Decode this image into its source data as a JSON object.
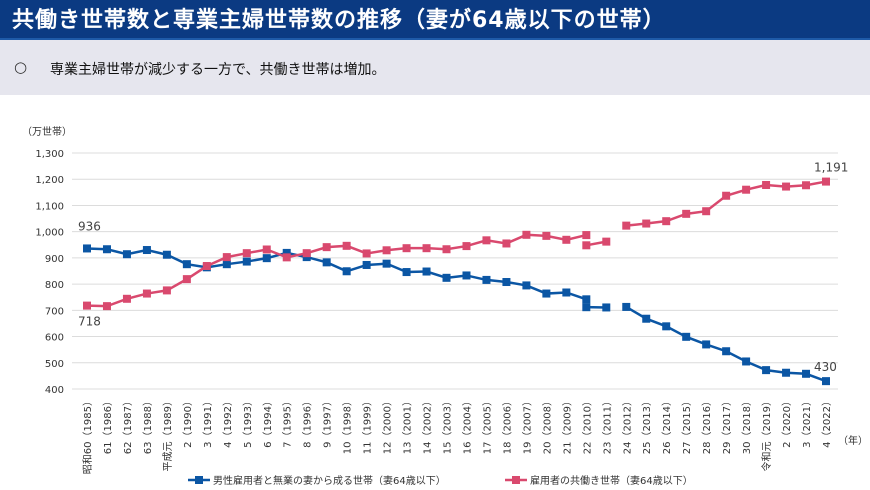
{
  "header": {
    "title": "共働き世帯数と専業主婦世帯数の推移（妻が64歳以下の世帯）"
  },
  "summary": {
    "bullet": "○",
    "text": "専業主婦世帯が減少する一方で、共働き世帯は増加。"
  },
  "chart_data": {
    "type": "line",
    "ylabel": "（万世帯）",
    "xlabel": "（年）",
    "ylim": [
      400,
      1300
    ],
    "yticks": [
      "400",
      "500",
      "600",
      "700",
      "800",
      "900",
      "1,000",
      "1,100",
      "1,200",
      "1,300"
    ],
    "grid": true,
    "legend_position": "bottom",
    "categories": [
      "昭和60（1985）",
      "61（1986）",
      "62（1987）",
      "63（1988）",
      "平成元（1989）",
      "2（1990）",
      "3（1991）",
      "4（1992）",
      "5（1993）",
      "6（1994）",
      "7（1995）",
      "8（1996）",
      "9（1997）",
      "10（1998）",
      "11（1999）",
      "12（2000）",
      "13（2001）",
      "14（2002）",
      "15（2003）",
      "16（2004）",
      "17（2005）",
      "18（2006）",
      "19（2007）",
      "20（2008）",
      "21（2009）",
      "22（2010）",
      "23（2011）",
      "24（2012）",
      "25（2013）",
      "26（2014）",
      "27（2015）",
      "28（2016）",
      "29（2017）",
      "30（2018）",
      "令和元（2019）",
      "2（2020）",
      "3（2021）",
      "4（2022）"
    ],
    "series": [
      {
        "name": "男性雇用者と無業の妻から成る世帯（妻64歳以下）",
        "color": "#0b56a4",
        "values": [
          936,
          933,
          914,
          930,
          912,
          876,
          864,
          876,
          886,
          899,
          919,
          903,
          883,
          849,
          873,
          878,
          846,
          848,
          824,
          833,
          816,
          808,
          795,
          764,
          768,
          742,
          711,
          713,
          668,
          639,
          599,
          570,
          544,
          505,
          472,
          462,
          458,
          430
        ],
        "values_2010_alt": 712,
        "labels": {
          "first": "936",
          "last": "430"
        }
      },
      {
        "name": "雇用者の共働き世帯（妻64歳以下）",
        "color": "#d9496e",
        "values": [
          718,
          716,
          744,
          764,
          776,
          819,
          869,
          903,
          918,
          932,
          902,
          918,
          941,
          946,
          917,
          929,
          937,
          937,
          933,
          945,
          967,
          955,
          988,
          984,
          969,
          987,
          962,
          1023,
          1031,
          1040,
          1068,
          1078,
          1137,
          1160,
          1178,
          1172,
          1177,
          1191
        ],
        "values_2010_alt": 948,
        "labels": {
          "first": "718",
          "last": "1,191"
        }
      }
    ]
  }
}
